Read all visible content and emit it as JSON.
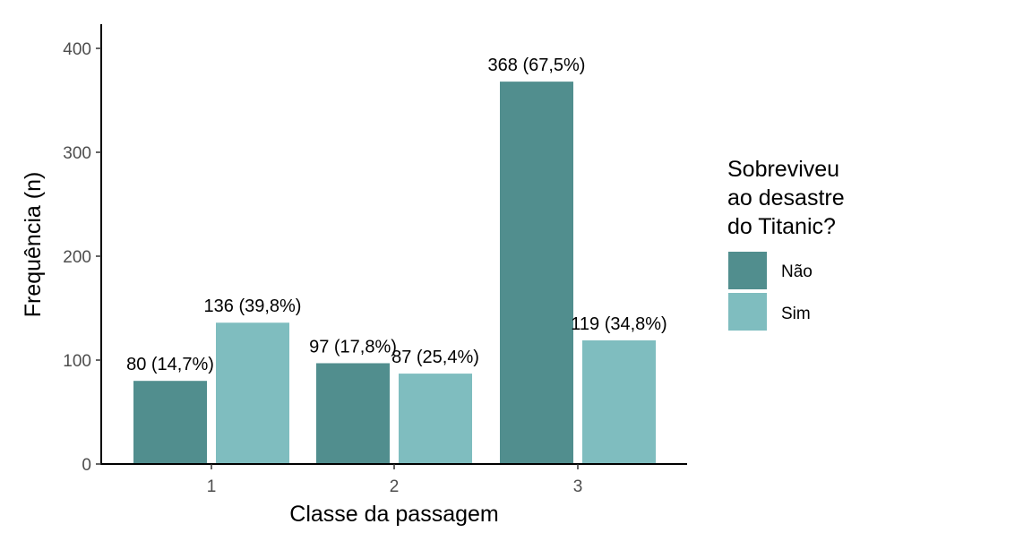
{
  "chart_data": {
    "type": "bar",
    "categories": [
      "1",
      "2",
      "3"
    ],
    "series": [
      {
        "name": "Não",
        "values": [
          80,
          97,
          368
        ],
        "labels": [
          "80 (14,7%)",
          "97 (17,8%)",
          "368 (67,5%)"
        ],
        "color": "#518e8e"
      },
      {
        "name": "Sim",
        "values": [
          136,
          87,
          119
        ],
        "labels": [
          "136 (39,8%)",
          "87 (25,4%)",
          "119 (34,8%)"
        ],
        "color": "#7fbdbf"
      }
    ],
    "xlabel": "Classe da passagem",
    "ylabel": "Frequência (n)",
    "ylim": [
      0,
      420
    ],
    "yticks": [
      0,
      100,
      200,
      300,
      400
    ],
    "legend": {
      "title_lines": [
        "Sobreviveu",
        "ao desastre",
        "do Titanic?"
      ],
      "position": "right"
    },
    "grid": false
  }
}
